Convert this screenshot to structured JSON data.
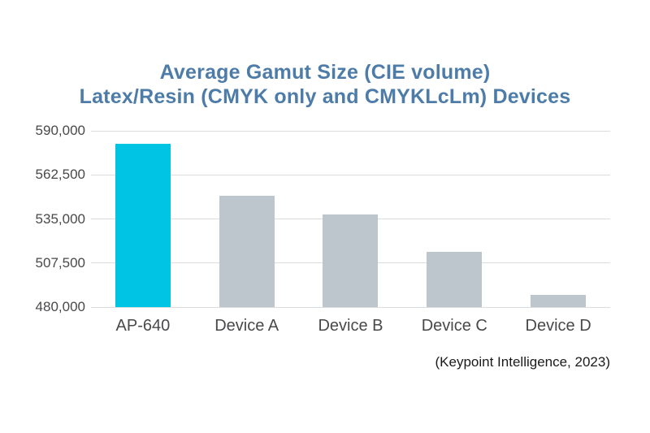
{
  "title": {
    "line1": "Average Gamut Size (CIE volume)",
    "line2": "Latex/Resin (CMYK only and CMYKLcLm) Devices"
  },
  "attribution": "(Keypoint Intelligence, 2023)",
  "colors": {
    "title_blue": "#4E7CA8",
    "highlight_bar": "#00C4E4",
    "default_bar": "#BDC5CD",
    "gridline": "#DADCDE",
    "axis_text": "#48494B",
    "attribution_text": "#1A1A1A",
    "background": "#FFFFFF"
  },
  "chart_data": {
    "type": "bar",
    "title": "Average Gamut Size (CIE volume)",
    "subtitle": "Latex/Resin (CMYK only and CMYKLcLm) Devices",
    "categories": [
      "AP-640",
      "Device A",
      "Device B",
      "Device C",
      "Device D"
    ],
    "values": [
      582000,
      549500,
      538000,
      514500,
      487500
    ],
    "ylim": [
      480000,
      590000
    ],
    "ytick_interval": 27500,
    "ytick_labels": [
      "480,000",
      "507,500",
      "535,000",
      "562,500",
      "590,000"
    ],
    "xlabel": "",
    "ylabel": "",
    "grid": "horizontal",
    "legend": "none",
    "annotations": [
      "(Keypoint Intelligence, 2023)"
    ],
    "highlighted_category": "AP-640",
    "bar_colors": [
      "#00C4E4",
      "#BDC5CD",
      "#BDC5CD",
      "#BDC5CD",
      "#BDC5CD"
    ]
  }
}
